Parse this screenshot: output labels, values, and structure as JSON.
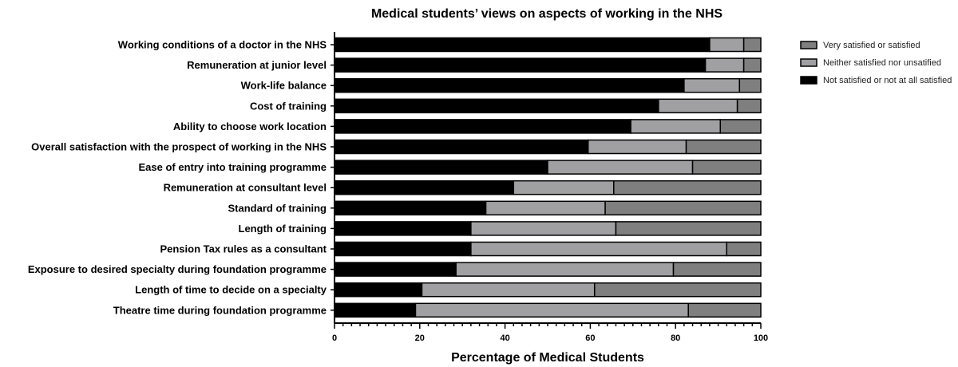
{
  "chart_data": {
    "type": "bar",
    "orientation": "horizontal",
    "stacked": true,
    "title": "Medical students’ views on aspects of working in the NHS",
    "xlabel": "Percentage of Medical Students",
    "ylabel": "",
    "xlim": [
      0,
      100
    ],
    "xticks": [
      "0",
      "20",
      "40",
      "60",
      "80",
      "100"
    ],
    "legend_position": "right",
    "categories": [
      "Working conditions of a doctor in the NHS",
      "Remuneration at junior level",
      "Work-life balance",
      "Cost of training",
      "Ability to choose work location",
      "Overall satisfaction with the prospect of working in the NHS",
      "Ease of entry into training programme",
      "Remuneration at consultant level",
      "Standard of training",
      "Length of training",
      "Pension Tax rules as a consultant",
      "Exposure to desired specialty during foundation programme",
      "Length of time to decide on a specialty",
      "Theatre time during foundation programme"
    ],
    "series": [
      {
        "name": "Not satisfied or not at all satisfied",
        "color": "#000000",
        "values": [
          88,
          87,
          82,
          76,
          69.5,
          59.5,
          50,
          42,
          35.5,
          32,
          32,
          28.5,
          20.5,
          19
        ]
      },
      {
        "name": "Neither satisfied nor unsatified",
        "color": "#a0a0a3",
        "values": [
          8,
          9,
          13,
          18.5,
          21,
          23,
          34,
          23.5,
          28,
          34,
          60,
          51,
          40.5,
          64
        ]
      },
      {
        "name": "Very satisfied or satisfied",
        "color": "#7f7f7f",
        "values": [
          4,
          4,
          5,
          5.5,
          9.5,
          17.5,
          16,
          34.5,
          36.5,
          34,
          8,
          20.5,
          39,
          17
        ]
      }
    ],
    "legend_order": [
      2,
      1,
      0
    ]
  }
}
